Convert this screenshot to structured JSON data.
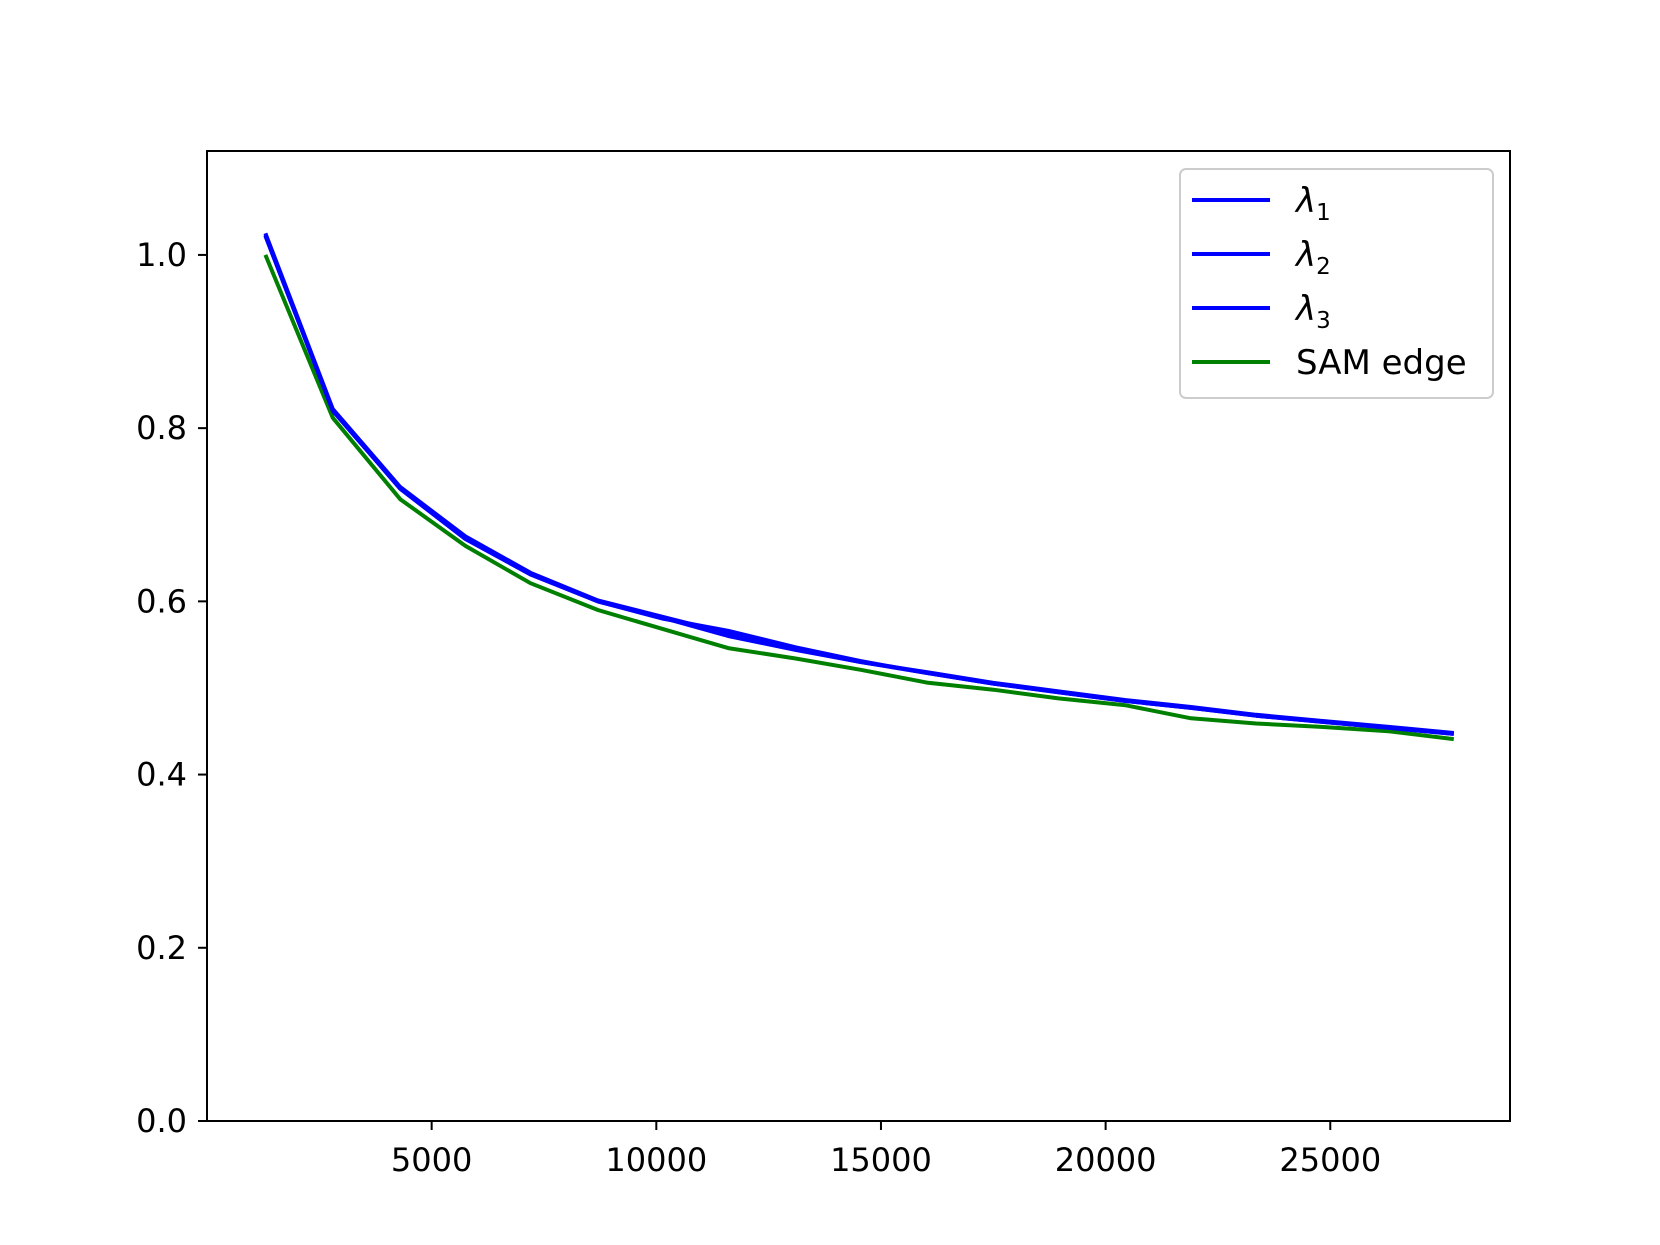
{
  "chart_data": {
    "type": "line",
    "title": "",
    "xlabel": "",
    "ylabel": "",
    "xlim": [
      0,
      29000
    ],
    "ylim": [
      0,
      1.12
    ],
    "xticks": [
      {
        "value": 5000,
        "label": "5000"
      },
      {
        "value": 10000,
        "label": "10000"
      },
      {
        "value": 15000,
        "label": "15000"
      },
      {
        "value": 20000,
        "label": "20000"
      },
      {
        "value": 25000,
        "label": "25000"
      }
    ],
    "yticks": [
      {
        "value": 0.0,
        "label": "0.0"
      },
      {
        "value": 0.2,
        "label": "0.2"
      },
      {
        "value": 0.4,
        "label": "0.4"
      },
      {
        "value": 0.6,
        "label": "0.6"
      },
      {
        "value": 0.8,
        "label": "0.8"
      },
      {
        "value": 1.0,
        "label": "1.0"
      }
    ],
    "grid": false,
    "legend_position": "top-right",
    "x": [
      1300,
      2800,
      4300,
      5750,
      7200,
      8700,
      10150,
      11600,
      13100,
      14550,
      16050,
      17500,
      18950,
      20450,
      21900,
      23350,
      24800,
      26300,
      27750
    ],
    "series": [
      {
        "name": "λ",
        "subscript": "1",
        "color": "#0000ff",
        "values": [
          1.025,
          0.822,
          0.732,
          0.675,
          0.633,
          0.601,
          0.582,
          0.563,
          0.545,
          0.53,
          0.518,
          0.506,
          0.496,
          0.486,
          0.478,
          0.469,
          0.462,
          0.455,
          0.448
        ]
      },
      {
        "name": "λ",
        "subscript": "2",
        "color": "#0000ff",
        "values": [
          1.022,
          0.82,
          0.73,
          0.672,
          0.631,
          0.6,
          0.58,
          0.566,
          0.547,
          0.531,
          0.517,
          0.505,
          0.495,
          0.485,
          0.477,
          0.468,
          0.461,
          0.454,
          0.447
        ]
      },
      {
        "name": "λ",
        "subscript": "3",
        "color": "#0000ff",
        "values": [
          1.023,
          0.821,
          0.731,
          0.674,
          0.632,
          0.6,
          0.581,
          0.56,
          0.544,
          0.53,
          0.517,
          0.505,
          0.495,
          0.485,
          0.477,
          0.468,
          0.461,
          0.454,
          0.447
        ]
      },
      {
        "name": "SAM edge",
        "subscript": "",
        "color": "#008000",
        "values": [
          1.0,
          0.812,
          0.718,
          0.664,
          0.621,
          0.59,
          0.568,
          0.546,
          0.534,
          0.521,
          0.506,
          0.498,
          0.488,
          0.48,
          0.465,
          0.459,
          0.455,
          0.45,
          0.441
        ]
      }
    ]
  }
}
